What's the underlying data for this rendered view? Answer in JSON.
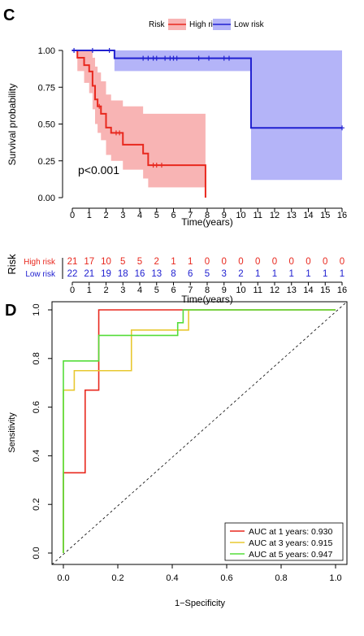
{
  "chart_data": [
    {
      "panel_label": "C",
      "type": "line",
      "subtype": "kaplan-meier",
      "legend": {
        "title": "Risk",
        "placement": "top-center",
        "entries": [
          {
            "label": "High risk",
            "color": "#e8281e"
          },
          {
            "label": "Low risk",
            "color": "#2020d0"
          }
        ]
      },
      "xlabel": "Time(years)",
      "ylabel": "Survival probability",
      "xlim": [
        0,
        16
      ],
      "ylim": [
        0,
        1
      ],
      "xticks": [
        0,
        1,
        2,
        3,
        4,
        5,
        6,
        7,
        8,
        9,
        10,
        11,
        12,
        13,
        14,
        15,
        16
      ],
      "yticks": [
        "0.00",
        "0.25",
        "0.50",
        "0.75",
        "1.00"
      ],
      "annotation": "p<0.001",
      "series": [
        {
          "name": "High risk",
          "color": "#e8281e",
          "ci_color": "#f8b4b4",
          "steps": [
            [
              0,
              1.0
            ],
            [
              0.3,
              0.95
            ],
            [
              0.7,
              0.9
            ],
            [
              1.0,
              0.857
            ],
            [
              1.2,
              0.76
            ],
            [
              1.35,
              0.667
            ],
            [
              1.5,
              0.62
            ],
            [
              1.7,
              0.57
            ],
            [
              2.0,
              0.476
            ],
            [
              2.3,
              0.44
            ],
            [
              3.0,
              0.36
            ],
            [
              4.2,
              0.3
            ],
            [
              4.5,
              0.22
            ],
            [
              7.9,
              0.22
            ],
            [
              7.9,
              0.0
            ]
          ],
          "ci_upper": [
            [
              0,
              1.0
            ],
            [
              0.3,
              1.0
            ],
            [
              0.7,
              1.0
            ],
            [
              1.0,
              1.0
            ],
            [
              1.2,
              0.95
            ],
            [
              1.35,
              0.89
            ],
            [
              1.5,
              0.85
            ],
            [
              1.7,
              0.79
            ],
            [
              2.0,
              0.7
            ],
            [
              2.3,
              0.66
            ],
            [
              3.0,
              0.62
            ],
            [
              4.2,
              0.57
            ],
            [
              4.5,
              0.57
            ],
            [
              7.9,
              0.57
            ]
          ],
          "ci_lower": [
            [
              0,
              1.0
            ],
            [
              0.3,
              0.86
            ],
            [
              0.7,
              0.78
            ],
            [
              1.0,
              0.71
            ],
            [
              1.2,
              0.6
            ],
            [
              1.35,
              0.5
            ],
            [
              1.5,
              0.44
            ],
            [
              1.7,
              0.39
            ],
            [
              2.0,
              0.29
            ],
            [
              2.3,
              0.25
            ],
            [
              3.0,
              0.19
            ],
            [
              4.2,
              0.13
            ],
            [
              4.5,
              0.07
            ],
            [
              7.9,
              0.07
            ]
          ],
          "censored": [
            [
              1.6,
              0.62
            ],
            [
              2.6,
              0.44
            ],
            [
              2.8,
              0.44
            ],
            [
              4.8,
              0.22
            ],
            [
              5.0,
              0.22
            ],
            [
              5.3,
              0.22
            ]
          ]
        },
        {
          "name": "Low risk",
          "color": "#2020d0",
          "ci_color": "#b4b4f8",
          "steps": [
            [
              0,
              1.0
            ],
            [
              2.5,
              1.0
            ],
            [
              2.5,
              0.947
            ],
            [
              10.6,
              0.947
            ],
            [
              10.6,
              0.474
            ],
            [
              16,
              0.474
            ]
          ],
          "ci_upper": [
            [
              0,
              1.0
            ],
            [
              2.5,
              1.0
            ],
            [
              10.6,
              1.0
            ],
            [
              16,
              1.0
            ]
          ],
          "ci_lower": [
            [
              0,
              1.0
            ],
            [
              2.5,
              0.86
            ],
            [
              10.6,
              0.12
            ],
            [
              16,
              0.12
            ]
          ],
          "censored": [
            [
              0.1,
              1.0
            ],
            [
              1.2,
              1.0
            ],
            [
              2.2,
              1.0
            ],
            [
              4.2,
              0.947
            ],
            [
              4.5,
              0.947
            ],
            [
              4.8,
              0.947
            ],
            [
              5.0,
              0.947
            ],
            [
              5.5,
              0.947
            ],
            [
              5.8,
              0.947
            ],
            [
              6.0,
              0.947
            ],
            [
              6.2,
              0.947
            ],
            [
              7.5,
              0.947
            ],
            [
              8.1,
              0.947
            ],
            [
              9.0,
              0.947
            ],
            [
              9.3,
              0.947
            ],
            [
              16,
              0.474
            ]
          ]
        }
      ]
    },
    {
      "panel_label": "",
      "type": "table",
      "subtype": "risk-table",
      "ylabel": "Risk",
      "xlabel": "Time(years)",
      "xticks": [
        0,
        1,
        2,
        3,
        4,
        5,
        6,
        7,
        8,
        9,
        10,
        11,
        12,
        13,
        14,
        15,
        16
      ],
      "rows": [
        {
          "name": "High risk",
          "color": "#e8281e",
          "values": [
            21,
            17,
            10,
            5,
            5,
            2,
            1,
            1,
            0,
            0,
            0,
            0,
            0,
            0,
            0,
            0,
            0
          ]
        },
        {
          "name": "Low risk",
          "color": "#2020d0",
          "values": [
            22,
            21,
            19,
            18,
            16,
            13,
            8,
            6,
            5,
            3,
            2,
            1,
            1,
            1,
            1,
            1,
            1
          ]
        }
      ]
    },
    {
      "panel_label": "D",
      "type": "line",
      "subtype": "roc",
      "xlabel": "1−Specificity",
      "ylabel": "Sensitivity",
      "xlim": [
        0,
        1
      ],
      "ylim": [
        0,
        1
      ],
      "xticks": [
        "0.0",
        "0.2",
        "0.4",
        "0.6",
        "0.8",
        "1.0"
      ],
      "yticks": [
        "0.0",
        "0.2",
        "0.4",
        "0.6",
        "0.8",
        "1.0"
      ],
      "legend": {
        "placement": "bottom-right"
      },
      "series": [
        {
          "name": "AUC at 1 years: 0.930",
          "color": "#e8281e",
          "points": [
            [
              0,
              0
            ],
            [
              0,
              0.33
            ],
            [
              0.08,
              0.33
            ],
            [
              0.08,
              0.67
            ],
            [
              0.13,
              0.67
            ],
            [
              0.13,
              1.0
            ],
            [
              1.0,
              1.0
            ]
          ]
        },
        {
          "name": "AUC at 3 years: 0.915",
          "color": "#e8c830",
          "points": [
            [
              0,
              0
            ],
            [
              0,
              0.67
            ],
            [
              0.04,
              0.67
            ],
            [
              0.04,
              0.75
            ],
            [
              0.25,
              0.75
            ],
            [
              0.25,
              0.917
            ],
            [
              0.46,
              0.917
            ],
            [
              0.46,
              1.0
            ],
            [
              1.0,
              1.0
            ]
          ]
        },
        {
          "name": "AUC at 5 years: 0.947",
          "color": "#55dd3a",
          "points": [
            [
              0,
              0
            ],
            [
              0,
              0.79
            ],
            [
              0.13,
              0.79
            ],
            [
              0.13,
              0.895
            ],
            [
              0.42,
              0.895
            ],
            [
              0.42,
              0.947
            ],
            [
              0.44,
              0.947
            ],
            [
              0.44,
              1.0
            ],
            [
              1.0,
              1.0
            ]
          ]
        }
      ]
    }
  ]
}
